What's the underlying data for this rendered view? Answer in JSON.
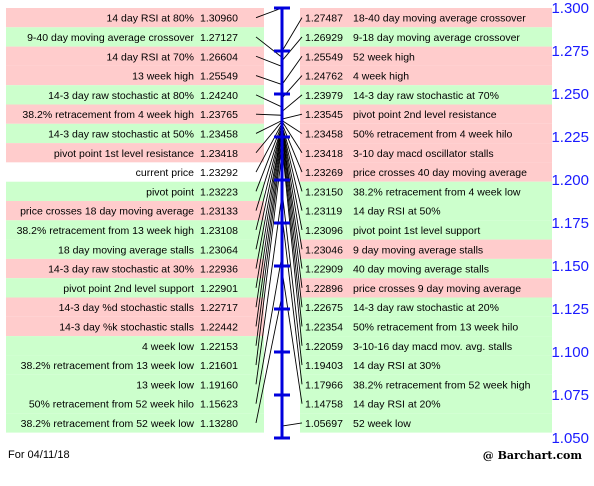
{
  "chart_data": {
    "type": "table",
    "axis": {
      "ylim": [
        1.05,
        1.3
      ],
      "ticks": [
        "1.300",
        "1.275",
        "1.250",
        "1.225",
        "1.200",
        "1.175",
        "1.150",
        "1.125",
        "1.100",
        "1.075",
        "1.050"
      ]
    },
    "left_rows": [
      {
        "label": "14 day RSI at 80%",
        "value": "1.30960",
        "v": 1.3096,
        "color": "#ffcccc"
      },
      {
        "label": "9-40 day moving average crossover",
        "value": "1.27127",
        "v": 1.27127,
        "color": "#ccffcc"
      },
      {
        "label": "14 day RSI at 70%",
        "value": "1.26604",
        "v": 1.26604,
        "color": "#ffcccc"
      },
      {
        "label": "13 week high",
        "value": "1.25549",
        "v": 1.25549,
        "color": "#ffcccc"
      },
      {
        "label": "14-3 day raw stochastic at 80%",
        "value": "1.24240",
        "v": 1.2424,
        "color": "#ccffcc"
      },
      {
        "label": "38.2% retracement from 4 week high",
        "value": "1.23765",
        "v": 1.23765,
        "color": "#ffcccc"
      },
      {
        "label": "14-3 day raw stochastic at 50%",
        "value": "1.23458",
        "v": 1.23458,
        "color": "#ccffcc"
      },
      {
        "label": "pivot point 1st level resistance",
        "value": "1.23418",
        "v": 1.23418,
        "color": "#ffcccc"
      },
      {
        "label": "current price",
        "value": "1.23292",
        "v": 1.23292,
        "color": "#ffffff"
      },
      {
        "label": "pivot point",
        "value": "1.23223",
        "v": 1.23223,
        "color": "#ccffcc"
      },
      {
        "label": "price crosses 18 day moving average",
        "value": "1.23133",
        "v": 1.23133,
        "color": "#ffcccc"
      },
      {
        "label": "38.2% retracement from 13 week high",
        "value": "1.23108",
        "v": 1.23108,
        "color": "#ccffcc"
      },
      {
        "label": "18 day moving average stalls",
        "value": "1.23064",
        "v": 1.23064,
        "color": "#ccffcc"
      },
      {
        "label": "14-3 day raw stochastic at 30%",
        "value": "1.22936",
        "v": 1.22936,
        "color": "#ffcccc"
      },
      {
        "label": "pivot point 2nd level support",
        "value": "1.22901",
        "v": 1.22901,
        "color": "#ccffcc"
      },
      {
        "label": "14-3 day %d stochastic stalls",
        "value": "1.22717",
        "v": 1.22717,
        "color": "#ffcccc"
      },
      {
        "label": "14-3 day %k stochastic stalls",
        "value": "1.22442",
        "v": 1.22442,
        "color": "#ffcccc"
      },
      {
        "label": "4 week low",
        "value": "1.22153",
        "v": 1.22153,
        "color": "#ccffcc"
      },
      {
        "label": "38.2% retracement from 13 week low",
        "value": "1.21601",
        "v": 1.21601,
        "color": "#ccffcc"
      },
      {
        "label": "13 week low",
        "value": "1.19160",
        "v": 1.1916,
        "color": "#ccffcc"
      },
      {
        "label": "50% retracement from 52 week hilo",
        "value": "1.15623",
        "v": 1.15623,
        "color": "#ccffcc"
      },
      {
        "label": "38.2% retracement from 52 week low",
        "value": "1.13280",
        "v": 1.1328,
        "color": "#ccffcc"
      }
    ],
    "right_rows": [
      {
        "label": "18-40 day moving average crossover",
        "value": "1.27487",
        "v": 1.27487,
        "color": "#ffcccc"
      },
      {
        "label": "9-18 day moving average crossover",
        "value": "1.26929",
        "v": 1.26929,
        "color": "#ccffcc"
      },
      {
        "label": "52 week high",
        "value": "1.25549",
        "v": 1.25549,
        "color": "#ffcccc"
      },
      {
        "label": "4 week high",
        "value": "1.24762",
        "v": 1.24762,
        "color": "#ffcccc"
      },
      {
        "label": "14-3 day raw stochastic at 70%",
        "value": "1.23979",
        "v": 1.23979,
        "color": "#ccffcc"
      },
      {
        "label": "pivot point 2nd level resistance",
        "value": "1.23545",
        "v": 1.23545,
        "color": "#ffcccc"
      },
      {
        "label": "50% retracement from 4 week hilo",
        "value": "1.23458",
        "v": 1.23458,
        "color": "#ffcccc"
      },
      {
        "label": "3-10 day macd oscillator stalls",
        "value": "1.23418",
        "v": 1.23418,
        "color": "#ffcccc"
      },
      {
        "label": "price crosses 40 day moving average",
        "value": "1.23269",
        "v": 1.23269,
        "color": "#ffcccc"
      },
      {
        "label": "38.2% retracement from 4 week low",
        "value": "1.23150",
        "v": 1.2315,
        "color": "#ccffcc"
      },
      {
        "label": "14 day RSI at 50%",
        "value": "1.23119",
        "v": 1.23119,
        "color": "#ccffcc"
      },
      {
        "label": "pivot point 1st level support",
        "value": "1.23096",
        "v": 1.23096,
        "color": "#ccffcc"
      },
      {
        "label": "9 day moving average stalls",
        "value": "1.23046",
        "v": 1.23046,
        "color": "#ffcccc"
      },
      {
        "label": "40 day moving average stalls",
        "value": "1.22909",
        "v": 1.22909,
        "color": "#ccffcc"
      },
      {
        "label": "price crosses 9 day moving average",
        "value": "1.22896",
        "v": 1.22896,
        "color": "#ffcccc"
      },
      {
        "label": "14-3 day raw stochastic at 20%",
        "value": "1.22675",
        "v": 1.22675,
        "color": "#ccffcc"
      },
      {
        "label": "50% retracement from 13 week hilo",
        "value": "1.22354",
        "v": 1.22354,
        "color": "#ccffcc"
      },
      {
        "label": "3-10-16 day macd mov. avg. stalls",
        "value": "1.22059",
        "v": 1.22059,
        "color": "#ccffcc"
      },
      {
        "label": "14 day RSI at 30%",
        "value": "1.19403",
        "v": 1.19403,
        "color": "#ccffcc"
      },
      {
        "label": "38.2% retracement from 52 week high",
        "value": "1.17966",
        "v": 1.17966,
        "color": "#ccffcc"
      },
      {
        "label": "14 day RSI at 20%",
        "value": "1.14758",
        "v": 1.14758,
        "color": "#ccffcc"
      },
      {
        "label": "52 week low",
        "value": "1.05697",
        "v": 1.05697,
        "color": "#ccffcc"
      }
    ],
    "line_color": "#000000",
    "axis_color": "#0000dd"
  },
  "footer": {
    "date": "For 04/11/18",
    "credit": "@ Barchart.com"
  }
}
